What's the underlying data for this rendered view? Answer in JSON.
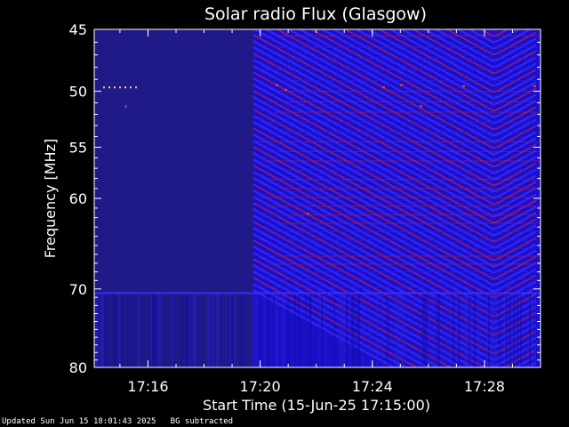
{
  "chart_data": {
    "type": "heatmap",
    "title": "Solar radio Flux (Glasgow)",
    "xlabel": "Start Time (15-Jun-25 17:15:00)",
    "ylabel": "Frequency [MHz]",
    "x_range": [
      "17:14:05",
      "17:30:00"
    ],
    "y_range": [
      45,
      80
    ],
    "y_scale": "log",
    "y_direction": "downward-increasing",
    "x_ticks": [
      "17:16",
      "17:20",
      "17:24",
      "17:28"
    ],
    "y_ticks": [
      45,
      50,
      55,
      60,
      70,
      80
    ],
    "data_gap": {
      "start": "17:14:05",
      "end": "17:19:45"
    },
    "colors": {
      "background": "#000000",
      "gap": "#1f1a88",
      "low": "#1a10c8",
      "mid": "#3a2aff",
      "high": "#ff2020"
    }
  },
  "footer": {
    "updated": "Updated Sun Jun 15 18:01:43 2025",
    "note": "BG subtracted"
  }
}
